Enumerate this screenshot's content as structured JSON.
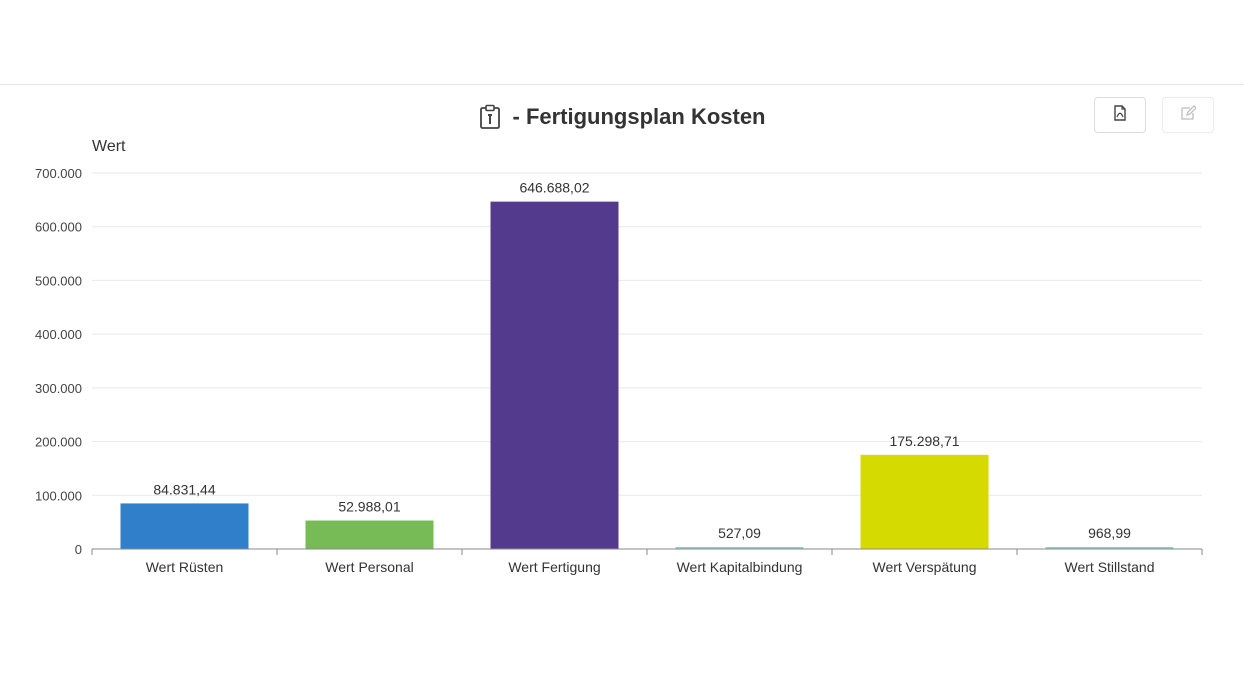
{
  "header": {
    "title": "- Fertigungsplan Kosten",
    "title_icon": "clipboard-icon",
    "export_icon": "export-pdf-icon",
    "edit_icon": "edit-icon"
  },
  "chart_data": {
    "type": "bar",
    "title": "- Fertigungsplan Kosten",
    "xlabel": "",
    "ylabel": "Wert",
    "ylim": [
      0,
      700000
    ],
    "grid": true,
    "y_ticks": [
      {
        "value": 0,
        "label": "0"
      },
      {
        "value": 100000,
        "label": "100.000"
      },
      {
        "value": 200000,
        "label": "200.000"
      },
      {
        "value": 300000,
        "label": "300.000"
      },
      {
        "value": 400000,
        "label": "400.000"
      },
      {
        "value": 500000,
        "label": "500.000"
      },
      {
        "value": 600000,
        "label": "600.000"
      },
      {
        "value": 700000,
        "label": "700.000"
      }
    ],
    "bars": [
      {
        "category": "Wert Rüsten",
        "value": 84831.44,
        "label": "84.831,44",
        "color": "#2f7fca"
      },
      {
        "category": "Wert Personal",
        "value": 52988.01,
        "label": "52.988,01",
        "color": "#77bb57"
      },
      {
        "category": "Wert Fertigung",
        "value": 646688.02,
        "label": "646.688,02",
        "color": "#533a8c"
      },
      {
        "category": "Wert Kapitalbindung",
        "value": 527.09,
        "label": "527,09",
        "color": "#8fd0c9"
      },
      {
        "category": "Wert Verspätung",
        "value": 175298.71,
        "label": "175.298,71",
        "color": "#d5da00"
      },
      {
        "category": "Wert Stillstand",
        "value": 968.99,
        "label": "968,99",
        "color": "#8fd0c9"
      }
    ]
  }
}
